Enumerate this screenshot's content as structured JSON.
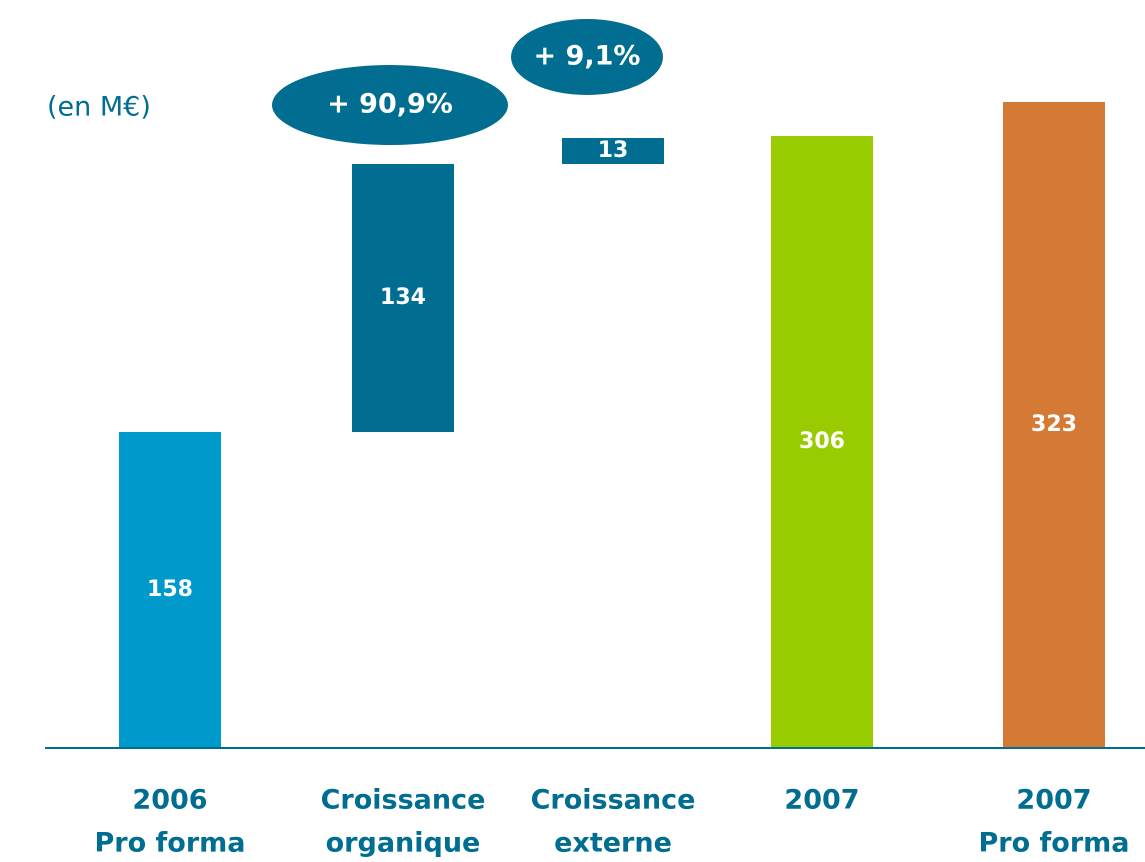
{
  "chart_data": {
    "type": "waterfall",
    "unit_label": "(en M€)",
    "categories": [
      [
        "2006",
        "Pro forma"
      ],
      [
        "Croissance",
        "organique"
      ],
      [
        "Croissance",
        "externe"
      ],
      [
        "2007"
      ],
      [
        "2007",
        "Pro forma"
      ]
    ],
    "values": [
      158,
      134,
      13,
      306,
      323
    ],
    "measure": [
      "absolute",
      "relative",
      "relative",
      "absolute",
      "absolute"
    ],
    "colors": [
      "#0099cc",
      "#006d91",
      "#006d91",
      "#99cc00",
      "#d47a35"
    ],
    "annotations": [
      "+ 90,9%",
      "+ 9,1%"
    ],
    "ylim": [
      0,
      340
    ]
  }
}
